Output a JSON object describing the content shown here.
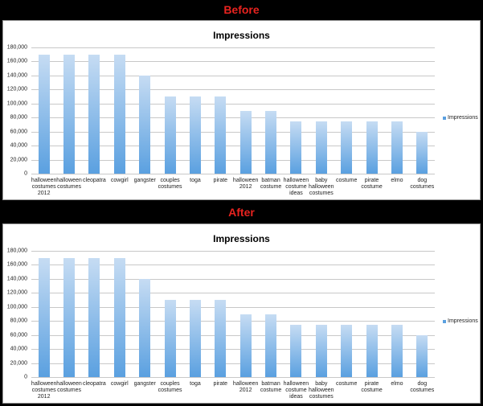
{
  "chart_data": [
    {
      "type": "bar",
      "heading": "Before",
      "title": "Impressions",
      "categories": [
        "halloween costumes 2012",
        "halloween costumes",
        "cleopatra",
        "cowgirl",
        "gangster",
        "couples costumes",
        "toga",
        "pirate",
        "halloween 2012",
        "batman costume",
        "halloween costume ideas",
        "baby halloween costumes",
        "costume",
        "pirate costume",
        "elmo",
        "dog costumes"
      ],
      "series": [
        {
          "name": "Impressions",
          "color": "#5aa0e0",
          "values": [
            170000,
            170000,
            170000,
            170000,
            140000,
            110000,
            110000,
            110000,
            90000,
            90000,
            75000,
            75000,
            75000,
            75000,
            75000,
            60000
          ]
        }
      ],
      "ylim": [
        0,
        180000
      ],
      "yticks": [
        0,
        {
          "value": 20000,
          "label": "20,000"
        },
        {
          "value": 40000,
          "label": "40,000"
        },
        {
          "value": 60000,
          "label": "60,000"
        },
        {
          "value": 80000,
          "label": "80,000"
        },
        {
          "value": 100000,
          "label": "100,000"
        },
        {
          "value": 120000,
          "label": "120,000"
        },
        {
          "value": 140000,
          "label": "140,000"
        },
        {
          "value": 160000,
          "label": "160,000"
        },
        {
          "value": 180000,
          "label": "180,000"
        }
      ],
      "grid": true,
      "legend": "right"
    },
    {
      "type": "bar",
      "heading": "After",
      "title": "Impressions",
      "categories": [
        "halloween costumes 2012",
        "halloween costumes",
        "cleopatra",
        "cowgirl",
        "gangster",
        "couples costumes",
        "toga",
        "pirate",
        "halloween 2012",
        "batman costume",
        "halloween costume ideas",
        "baby halloween costumes",
        "costume",
        "pirate costume",
        "elmo",
        "dog costumes"
      ],
      "series": [
        {
          "name": "Impressions",
          "color": "#5aa0e0",
          "values": [
            170000,
            170000,
            170000,
            170000,
            140000,
            110000,
            110000,
            110000,
            90000,
            90000,
            75000,
            75000,
            75000,
            75000,
            75000,
            60000
          ]
        }
      ],
      "ylim": [
        0,
        180000
      ],
      "yticks": [
        0,
        {
          "value": 20000,
          "label": "20,000"
        },
        {
          "value": 40000,
          "label": "40,000"
        },
        {
          "value": 60000,
          "label": "60,000"
        },
        {
          "value": 80000,
          "label": "80,000"
        },
        {
          "value": 100000,
          "label": "100,000"
        },
        {
          "value": 120000,
          "label": "120,000"
        },
        {
          "value": 140000,
          "label": "140,000"
        },
        {
          "value": 160000,
          "label": "160,000"
        },
        {
          "value": 180000,
          "label": "180,000"
        }
      ],
      "grid": true,
      "legend": "right"
    }
  ]
}
